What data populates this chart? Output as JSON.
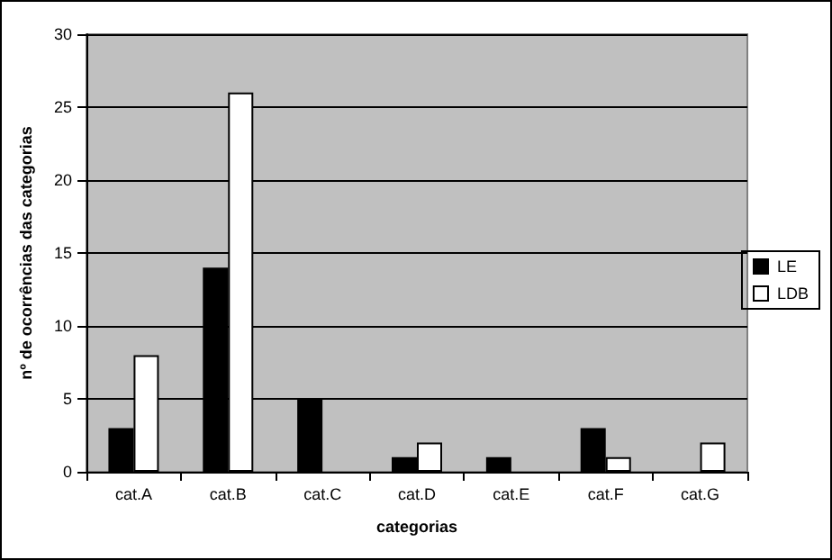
{
  "chart_data": {
    "type": "bar",
    "xlabel": "categorias",
    "ylabel": "nº de ocorrências das categorias",
    "categories": [
      "cat.A",
      "cat.B",
      "cat.C",
      "cat.D",
      "cat.E",
      "cat.F",
      "cat.G"
    ],
    "series": [
      {
        "name": "LE",
        "color": "#000000",
        "values": [
          3,
          14,
          5,
          1,
          1,
          3,
          0
        ]
      },
      {
        "name": "LDB",
        "color": "#ffffff",
        "values": [
          8,
          26,
          0,
          2,
          0,
          1,
          2
        ]
      }
    ],
    "ylim": [
      0,
      30
    ],
    "yticks": [
      0,
      5,
      10,
      15,
      20,
      25,
      30
    ],
    "grid": "y",
    "legend": "right"
  }
}
